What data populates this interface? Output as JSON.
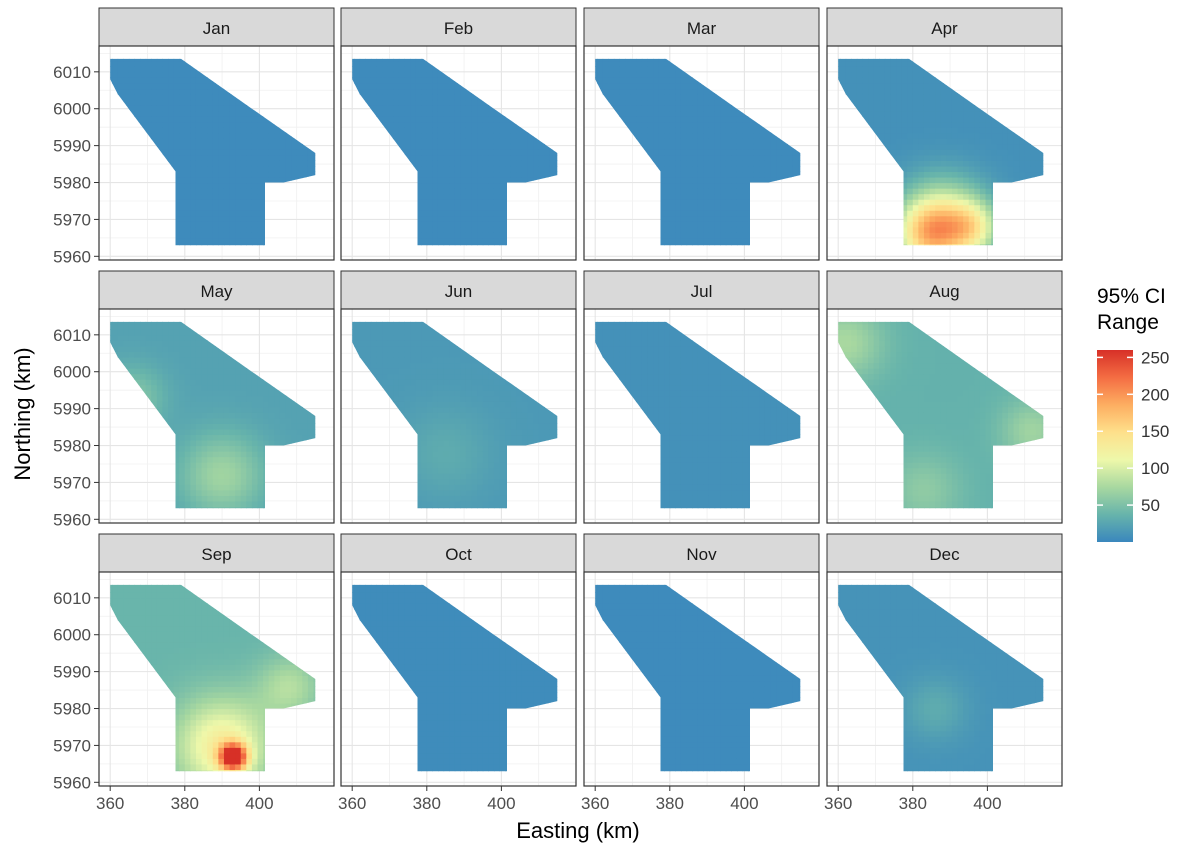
{
  "chart_data": {
    "type": "heatmap",
    "facet_by": "month",
    "facets": [
      "Jan",
      "Feb",
      "Mar",
      "Apr",
      "May",
      "Jun",
      "Jul",
      "Aug",
      "Sep",
      "Oct",
      "Nov",
      "Dec"
    ],
    "facet_grid": "3 rows x 4 columns",
    "xlabel": "Easting (km)",
    "ylabel": "Northing (km)",
    "xlim": [
      357,
      420
    ],
    "ylim": [
      5959,
      6017
    ],
    "x_ticks": [
      360,
      380,
      400
    ],
    "y_ticks": [
      5960,
      5970,
      5980,
      5990,
      6000,
      6010
    ],
    "grid": true,
    "legend": {
      "title_lines": [
        "95% CI",
        "Range"
      ],
      "position": "right",
      "range": [
        0,
        260
      ],
      "ticks": [
        50,
        100,
        150,
        200,
        250
      ],
      "colors": [
        "#3a87bd",
        "#67b4ab",
        "#a8d8a0",
        "#eef8aa",
        "#fee08b",
        "#fdae61",
        "#f46d43",
        "#d73027"
      ]
    },
    "region_outline": [
      [
        360,
        6013.5
      ],
      [
        379,
        6013.5
      ],
      [
        398,
        6000
      ],
      [
        415,
        5988
      ],
      [
        415,
        5982
      ],
      [
        406.5,
        5980
      ],
      [
        401.5,
        5980
      ],
      [
        401.5,
        5963
      ],
      [
        377.5,
        5963
      ],
      [
        377.5,
        5983
      ],
      [
        362,
        6004
      ],
      [
        360,
        6008
      ]
    ],
    "monthly_ci_range": [
      {
        "month": "Jan",
        "baseline": 3,
        "hotspots": []
      },
      {
        "month": "Feb",
        "baseline": 3,
        "hotspots": []
      },
      {
        "month": "Mar",
        "baseline": 3,
        "hotspots": []
      },
      {
        "month": "Apr",
        "baseline": 8,
        "hotspots": [
          {
            "x": 388,
            "y": 5969,
            "value": 120,
            "spread": 8
          },
          {
            "x": 384,
            "y": 5966,
            "value": 100,
            "spread": 6
          },
          {
            "x": 396,
            "y": 5968,
            "value": 85,
            "spread": 5
          }
        ]
      },
      {
        "month": "May",
        "baseline": 22,
        "hotspots": [
          {
            "x": 390,
            "y": 5972,
            "value": 70,
            "spread": 8
          },
          {
            "x": 366,
            "y": 5993,
            "value": 55,
            "spread": 6
          }
        ]
      },
      {
        "month": "Jun",
        "baseline": 15,
        "hotspots": [
          {
            "x": 385,
            "y": 5978,
            "value": 30,
            "spread": 9
          }
        ]
      },
      {
        "month": "Jul",
        "baseline": 8,
        "hotspots": []
      },
      {
        "month": "Aug",
        "baseline": 35,
        "hotspots": [
          {
            "x": 362,
            "y": 6008,
            "value": 75,
            "spread": 7
          },
          {
            "x": 412,
            "y": 5984,
            "value": 70,
            "spread": 6
          },
          {
            "x": 383,
            "y": 5968,
            "value": 60,
            "spread": 7
          }
        ]
      },
      {
        "month": "Sep",
        "baseline": 38,
        "hotspots": [
          {
            "x": 393,
            "y": 5967,
            "value": 250,
            "spread": 2.5
          },
          {
            "x": 390,
            "y": 5970,
            "value": 130,
            "spread": 9
          },
          {
            "x": 408,
            "y": 5986,
            "value": 80,
            "spread": 6
          }
        ]
      },
      {
        "month": "Oct",
        "baseline": 4,
        "hotspots": []
      },
      {
        "month": "Nov",
        "baseline": 3,
        "hotspots": []
      },
      {
        "month": "Dec",
        "baseline": 10,
        "hotspots": [
          {
            "x": 386,
            "y": 5980,
            "value": 30,
            "spread": 6
          }
        ]
      }
    ]
  }
}
